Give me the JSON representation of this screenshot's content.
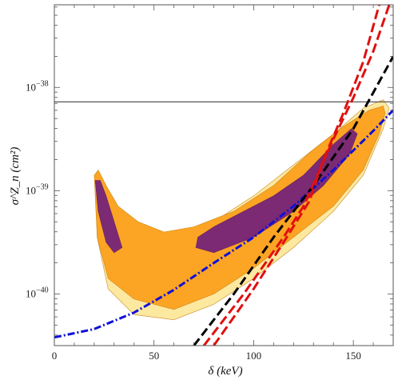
{
  "chart_data": {
    "type": "line",
    "xlabel": "δ (keV)",
    "ylabel": "σ^Z_n (cm²)",
    "xlim": [
      0,
      170
    ],
    "ylim_log10": [
      -40.5,
      -37.2
    ],
    "y_scale": "log",
    "x_ticks": [
      {
        "value": 0,
        "label": "0"
      },
      {
        "value": 50,
        "label": "50"
      },
      {
        "value": 100,
        "label": "100"
      },
      {
        "value": 150,
        "label": "150"
      }
    ],
    "y_ticks": [
      {
        "log10": -38,
        "label": "10",
        "exponent": "−38"
      },
      {
        "log10": -39,
        "label": "10",
        "exponent": "−39"
      },
      {
        "log10": -40,
        "label": "10",
        "exponent": "−40"
      }
    ],
    "horizontal_line": {
      "log10": -38.14,
      "color": "#555555"
    },
    "regions": [
      {
        "color": "#fde8a0",
        "points": [
          [
            20.5,
            -38.9
          ],
          [
            21.5,
            -39.45
          ],
          [
            27,
            -39.95
          ],
          [
            40,
            -40.2
          ],
          [
            60,
            -40.25
          ],
          [
            80,
            -40.1
          ],
          [
            100,
            -39.85
          ],
          [
            120,
            -39.55
          ],
          [
            140,
            -39.2
          ],
          [
            155,
            -38.85
          ],
          [
            165,
            -38.4
          ],
          [
            168,
            -38.2
          ],
          [
            165,
            -38.12
          ],
          [
            155,
            -38.2
          ],
          [
            140,
            -38.45
          ],
          [
            120,
            -38.75
          ],
          [
            100,
            -39.05
          ],
          [
            80,
            -39.3
          ],
          [
            60,
            -39.45
          ],
          [
            45,
            -39.45
          ],
          [
            35,
            -39.3
          ],
          [
            28,
            -39.1
          ],
          [
            24,
            -38.9
          ],
          [
            21.5,
            -38.82
          ]
        ]
      },
      {
        "color": "#fca423",
        "points": [
          [
            20,
            -38.85
          ],
          [
            21.5,
            -39.45
          ],
          [
            27,
            -39.85
          ],
          [
            40,
            -40.05
          ],
          [
            60,
            -40.15
          ],
          [
            80,
            -40.0
          ],
          [
            100,
            -39.75
          ],
          [
            120,
            -39.45
          ],
          [
            140,
            -39.15
          ],
          [
            155,
            -38.8
          ],
          [
            163,
            -38.45
          ],
          [
            166,
            -38.25
          ],
          [
            165,
            -38.18
          ],
          [
            158,
            -38.22
          ],
          [
            145,
            -38.38
          ],
          [
            130,
            -38.6
          ],
          [
            110,
            -38.95
          ],
          [
            90,
            -39.2
          ],
          [
            70,
            -39.35
          ],
          [
            55,
            -39.4
          ],
          [
            42,
            -39.3
          ],
          [
            32,
            -39.15
          ],
          [
            26,
            -38.95
          ],
          [
            22,
            -38.8
          ]
        ]
      },
      {
        "color": "#7b2a73",
        "points": [
          [
            20.5,
            -38.9
          ],
          [
            22,
            -39.2
          ],
          [
            26,
            -39.5
          ],
          [
            30,
            -39.6
          ],
          [
            34,
            -39.55
          ],
          [
            30,
            -39.3
          ],
          [
            26,
            -39.05
          ],
          [
            23,
            -38.9
          ]
        ]
      },
      {
        "color": "#7b2a73",
        "points": [
          [
            71,
            -39.55
          ],
          [
            80,
            -39.6
          ],
          [
            100,
            -39.45
          ],
          [
            120,
            -39.2
          ],
          [
            135,
            -38.95
          ],
          [
            148,
            -38.65
          ],
          [
            152,
            -38.45
          ],
          [
            149,
            -38.4
          ],
          [
            140,
            -38.55
          ],
          [
            125,
            -38.85
          ],
          [
            110,
            -39.05
          ],
          [
            95,
            -39.2
          ],
          [
            80,
            -39.35
          ],
          [
            72,
            -39.45
          ]
        ]
      }
    ],
    "series": [
      {
        "color": "#1010d8",
        "dash": "9 3 2 3",
        "points": [
          [
            0,
            -40.42
          ],
          [
            20,
            -40.34
          ],
          [
            40,
            -40.18
          ],
          [
            60,
            -39.96
          ],
          [
            80,
            -39.7
          ],
          [
            100,
            -39.45
          ],
          [
            120,
            -39.15
          ],
          [
            140,
            -38.8
          ],
          [
            160,
            -38.42
          ],
          [
            170,
            -38.22
          ]
        ]
      },
      {
        "color": "#000000",
        "dash": "11 5",
        "points": [
          [
            70,
            -40.5
          ],
          [
            90,
            -40.0
          ],
          [
            110,
            -39.45
          ],
          [
            130,
            -38.95
          ],
          [
            150,
            -38.4
          ],
          [
            170,
            -37.7
          ]
        ]
      },
      {
        "color": "#e01010",
        "dash": "12 5",
        "points": [
          [
            75,
            -40.5
          ],
          [
            95,
            -40.0
          ],
          [
            115,
            -39.45
          ],
          [
            125,
            -39.15
          ],
          [
            132,
            -38.85
          ],
          [
            140,
            -38.5
          ],
          [
            150,
            -38.1
          ],
          [
            160,
            -37.65
          ],
          [
            168,
            -37.2
          ]
        ]
      },
      {
        "color": "#e01010",
        "dash": "12 5",
        "points": [
          [
            80,
            -40.5
          ],
          [
            100,
            -39.95
          ],
          [
            115,
            -39.5
          ],
          [
            128,
            -39.1
          ],
          [
            135,
            -38.7
          ],
          [
            145,
            -38.25
          ],
          [
            155,
            -37.75
          ],
          [
            163,
            -37.2
          ]
        ]
      }
    ]
  }
}
